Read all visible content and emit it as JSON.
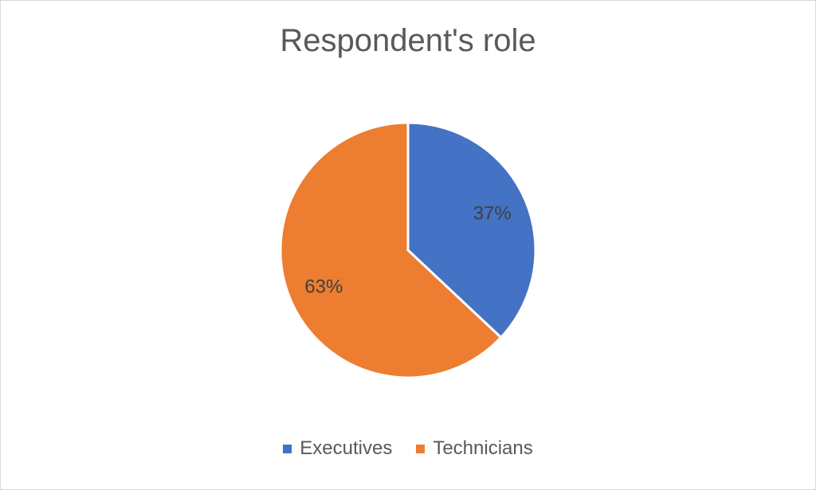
{
  "chart_data": {
    "type": "pie",
    "title": "Respondent's role",
    "categories": [
      "Executives",
      "Technicians"
    ],
    "values": [
      37,
      63
    ],
    "labels": [
      "37%",
      "63%"
    ],
    "colors": [
      "#4472c4",
      "#ed7d31"
    ],
    "legend": "bottom"
  }
}
